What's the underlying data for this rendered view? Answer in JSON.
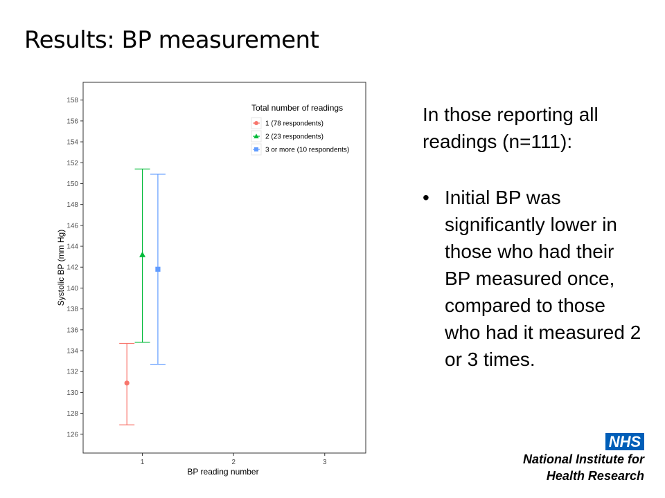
{
  "slide": {
    "title": "Results: BP measurement",
    "intro_text": "In those reporting all readings (n=111):",
    "bullets": [
      "Initial BP was significantly lower in those who had their BP measured once, compared to those who had it measured 2 or 3 times."
    ]
  },
  "logo": {
    "badge": "NHS",
    "line1": "National Institute for",
    "line2": "Health Research"
  },
  "chart_data": {
    "type": "scatter",
    "xlabel": "BP reading number",
    "ylabel": "Systolic BP (mm Hg)",
    "x_ticks": [
      "1",
      "2",
      "3"
    ],
    "xlim": [
      0.35,
      3.45
    ],
    "y_ticks": [
      126,
      128,
      130,
      132,
      134,
      136,
      138,
      140,
      142,
      144,
      146,
      148,
      150,
      152,
      154,
      156,
      158
    ],
    "ylim": [
      124.2,
      159.7
    ],
    "grid": false,
    "legend_title": "Total number of readings",
    "legend_position": "top-right",
    "series": [
      {
        "name": "1 (78 respondents)",
        "color": "#f8766d",
        "marker": "circle",
        "x": 0.83,
        "y": 130.9,
        "ci_low": 126.9,
        "ci_high": 134.7
      },
      {
        "name": "2 (23 respondents)",
        "color": "#00ba38",
        "marker": "triangle",
        "x": 1.0,
        "y": 143.2,
        "ci_low": 134.8,
        "ci_high": 151.4
      },
      {
        "name": "3 or more (10 respondents)",
        "color": "#619cff",
        "marker": "square",
        "x": 1.17,
        "y": 141.8,
        "ci_low": 132.7,
        "ci_high": 150.9
      }
    ]
  }
}
